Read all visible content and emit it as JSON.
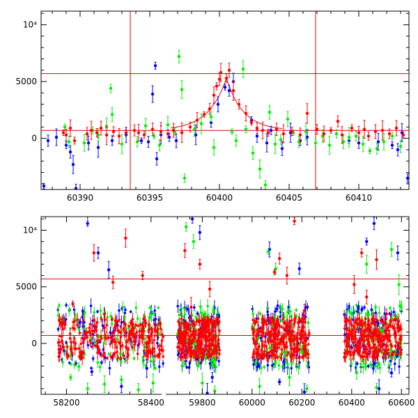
{
  "colors": {
    "red": "#ff0000",
    "green": "#00ee00",
    "blue": "#0000ff",
    "reference_line": "#dd0000",
    "frame": "#000000"
  },
  "chart_data": [
    {
      "type": "scatter",
      "panel": "top",
      "title": "",
      "xlabel": "",
      "ylabel": "",
      "xlim": [
        60387.2,
        60413.6
      ],
      "ylim": [
        -4500,
        11200
      ],
      "x_ticks": [
        60390,
        60395,
        60400,
        60405,
        60410
      ],
      "x_tick_labels": [
        "60390",
        "60395",
        "60400",
        "60405",
        "60410"
      ],
      "y_ticks": [
        0,
        5000,
        10000
      ],
      "y_tick_labels": [
        "0",
        "5000",
        "10⁴"
      ],
      "errorbars": true,
      "hlines": [
        700,
        5700
      ],
      "vlines": [
        60393.6,
        60406.9
      ],
      "model_curve": {
        "shape": "exponential cusp",
        "peak_x": 60400.5,
        "peak_y": 5300,
        "baseline": 700,
        "rise_scale_days": 1.3,
        "decay_scale_days": 1.2
      },
      "series": [
        {
          "color": "red",
          "points": [
            [
              60388.8,
              500
            ],
            [
              60389.0,
              300
            ],
            [
              60389.3,
              900
            ],
            [
              60389.6,
              -200
            ],
            [
              60390.5,
              400
            ],
            [
              60390.8,
              700
            ],
            [
              60391.2,
              500
            ],
            [
              60391.5,
              900
            ],
            [
              60391.9,
              300
            ],
            [
              60392.4,
              600
            ],
            [
              60392.8,
              200
            ],
            [
              60393.3,
              500
            ],
            [
              60393.9,
              700
            ],
            [
              60394.2,
              500
            ],
            [
              60394.6,
              300
            ],
            [
              60395.2,
              800
            ],
            [
              60395.8,
              600
            ],
            [
              60396.3,
              400
            ],
            [
              60396.7,
              700
            ],
            [
              60397.3,
              500
            ],
            [
              60397.9,
              1000
            ],
            [
              60398.4,
              1600
            ],
            [
              60398.9,
              2100
            ],
            [
              60399.3,
              2600
            ],
            [
              60399.6,
              3800
            ],
            [
              60399.8,
              4600
            ],
            [
              60400.0,
              5200
            ],
            [
              60400.1,
              5800
            ],
            [
              60400.5,
              5300
            ],
            [
              60400.7,
              6000
            ],
            [
              60401.0,
              4200
            ],
            [
              60401.4,
              3000
            ],
            [
              60401.9,
              2200
            ],
            [
              60402.3,
              1400
            ],
            [
              60402.7,
              900
            ],
            [
              60403.1,
              700
            ],
            [
              60403.5,
              500
            ],
            [
              60404.1,
              800
            ],
            [
              60404.6,
              400
            ],
            [
              60405.2,
              600
            ],
            [
              60405.8,
              300
            ],
            [
              60406.3,
              2200
            ],
            [
              60407.0,
              800
            ],
            [
              60407.5,
              400
            ],
            [
              60408.0,
              700
            ],
            [
              60408.5,
              1500
            ],
            [
              60408.8,
              300
            ],
            [
              60409.5,
              900
            ],
            [
              60410.0,
              500
            ],
            [
              60410.4,
              800
            ],
            [
              60410.7,
              200
            ],
            [
              60411.2,
              600
            ],
            [
              60411.7,
              700
            ],
            [
              60412.2,
              400
            ],
            [
              60412.7,
              900
            ],
            [
              60413.2,
              300
            ]
          ]
        },
        {
          "color": "green",
          "points": [
            [
              60388.9,
              1000
            ],
            [
              60389.2,
              -300
            ],
            [
              60390.3,
              -400
            ],
            [
              60390.9,
              700
            ],
            [
              60391.3,
              300
            ],
            [
              60391.9,
              1000
            ],
            [
              60392.2,
              4400
            ],
            [
              60392.3,
              2100
            ],
            [
              60393.0,
              -500
            ],
            [
              60394.1,
              -300
            ],
            [
              60394.7,
              1100
            ],
            [
              60395.3,
              200
            ],
            [
              60395.7,
              -600
            ],
            [
              60396.3,
              1200
            ],
            [
              60396.8,
              600
            ],
            [
              60397.1,
              7200
            ],
            [
              60397.3,
              4300
            ],
            [
              60397.5,
              -3500
            ],
            [
              60398.2,
              800
            ],
            [
              60398.7,
              1300
            ],
            [
              60399.4,
              1900
            ],
            [
              60399.6,
              -800
            ],
            [
              60400.9,
              600
            ],
            [
              60401.2,
              -200
            ],
            [
              60401.7,
              6100
            ],
            [
              60401.9,
              800
            ],
            [
              60402.4,
              -1300
            ],
            [
              60402.9,
              -2700
            ],
            [
              60403.3,
              -4100
            ],
            [
              60403.6,
              2300
            ],
            [
              60404.0,
              -500
            ],
            [
              60404.4,
              -100
            ],
            [
              60404.9,
              1700
            ],
            [
              60405.3,
              500
            ],
            [
              60405.7,
              -300
            ],
            [
              60406.2,
              600
            ],
            [
              60406.9,
              -400
            ],
            [
              60407.4,
              200
            ],
            [
              60407.9,
              -600
            ],
            [
              60408.4,
              400
            ],
            [
              60408.9,
              -300
            ],
            [
              60409.3,
              100
            ],
            [
              60409.8,
              200
            ],
            [
              60410.3,
              -500
            ],
            [
              60410.8,
              -1100
            ],
            [
              60411.3,
              -900
            ],
            [
              60411.8,
              -300
            ],
            [
              60412.4,
              200
            ],
            [
              60413.0,
              -700
            ]
          ]
        },
        {
          "color": "blue",
          "points": [
            [
              60387.4,
              -4200
            ],
            [
              60387.7,
              -200
            ],
            [
              60388.3,
              100
            ],
            [
              60389.0,
              -600
            ],
            [
              60389.3,
              -1200
            ],
            [
              60389.5,
              -2300
            ],
            [
              60389.7,
              -4400
            ],
            [
              60390.6,
              -400
            ],
            [
              60391.3,
              -800
            ],
            [
              60392.3,
              -200
            ],
            [
              60393.3,
              300
            ],
            [
              60394.4,
              -200
            ],
            [
              60394.9,
              -300
            ],
            [
              60395.2,
              3900
            ],
            [
              60395.4,
              6400
            ],
            [
              60395.5,
              -1800
            ],
            [
              60395.8,
              300
            ],
            [
              60396.4,
              100
            ],
            [
              60396.9,
              -200
            ],
            [
              60398.3,
              300
            ],
            [
              60399.4,
              1400
            ],
            [
              60399.9,
              3000
            ],
            [
              60400.4,
              4500
            ],
            [
              60400.7,
              4200
            ],
            [
              60401.0,
              5000
            ],
            [
              60402.3,
              1600
            ],
            [
              60402.7,
              200
            ],
            [
              60403.4,
              -400
            ],
            [
              60403.7,
              700
            ],
            [
              60404.5,
              -900
            ],
            [
              60405.1,
              500
            ],
            [
              60405.8,
              -200
            ],
            [
              60406.3,
              100
            ],
            [
              60409.3,
              -200
            ],
            [
              60410.0,
              -400
            ],
            [
              60411.4,
              -300
            ],
            [
              60412.4,
              -600
            ],
            [
              60412.8,
              -1000
            ],
            [
              60413.1,
              500
            ],
            [
              60413.5,
              -3500
            ]
          ]
        }
      ]
    },
    {
      "type": "scatter",
      "panel": "bottom",
      "title": "",
      "xlabel": "",
      "ylabel": "",
      "xlim": [
        58140,
        60630
      ],
      "ylim": [
        -4500,
        11200
      ],
      "x_ticks": [
        58200,
        58400,
        59800,
        60000,
        60200,
        60400,
        60600
      ],
      "x_tick_labels": [
        "58200",
        "58400",
        "59800",
        "60000",
        "60200",
        "60400",
        "60600"
      ],
      "y_ticks": [
        0,
        5000,
        10000
      ],
      "y_tick_labels": [
        "0",
        "5000",
        "10⁴"
      ],
      "errorbars": true,
      "hlines": [
        700,
        5700
      ],
      "axis_break": "x axis jumps from 58400 to 59800",
      "seasons": [
        [
          58180,
          58430
        ],
        [
          59700,
          59870
        ],
        [
          60000,
          60230
        ],
        [
          60370,
          60600
        ]
      ],
      "baseline_band": [
        -1500,
        2000
      ],
      "series": [
        {
          "color": "red",
          "points": [
            [
              58215,
              3500
            ],
            [
              58240,
              -800
            ],
            [
              58265,
              8000
            ],
            [
              58290,
              2600
            ],
            [
              58310,
              5400
            ],
            [
              58340,
              9300
            ],
            [
              58380,
              6000
            ],
            [
              59730,
              8200
            ],
            [
              59755,
              3200
            ],
            [
              59790,
              7000
            ],
            [
              59830,
              4800
            ],
            [
              60090,
              6300
            ],
            [
              60110,
              7500
            ],
            [
              60140,
              6000
            ],
            [
              60170,
              10800
            ],
            [
              60210,
              2900
            ],
            [
              60410,
              5200
            ],
            [
              60440,
              8000
            ],
            [
              60460,
              4100
            ],
            [
              60500,
              7400
            ],
            [
              60540,
              2600
            ]
          ]
        },
        {
          "color": "green",
          "points": [
            [
              58210,
              -3000
            ],
            [
              58250,
              -4000
            ],
            [
              58290,
              -3600
            ],
            [
              58330,
              -3200
            ],
            [
              58370,
              -4100
            ],
            [
              58405,
              -3500
            ],
            [
              59735,
              10300
            ],
            [
              59765,
              9000
            ],
            [
              59800,
              -3500
            ],
            [
              59850,
              -4200
            ],
            [
              60030,
              -3800
            ],
            [
              60065,
              8100
            ],
            [
              60095,
              6600
            ],
            [
              60150,
              -3000
            ],
            [
              60220,
              -4000
            ],
            [
              60420,
              -2600
            ],
            [
              60460,
              7000
            ],
            [
              60500,
              -3900
            ],
            [
              60560,
              8300
            ],
            [
              60590,
              5200
            ]
          ]
        },
        {
          "color": "blue",
          "points": [
            [
              58250,
              10600
            ],
            [
              58275,
              8000
            ],
            [
              58300,
              6500
            ],
            [
              58260,
              -2500
            ],
            [
              58330,
              -3800
            ],
            [
              58390,
              -2200
            ],
            [
              59760,
              11000
            ],
            [
              59790,
              9800
            ],
            [
              59820,
              -4400
            ],
            [
              59840,
              -3000
            ],
            [
              60070,
              8300
            ],
            [
              60110,
              -3400
            ],
            [
              60190,
              6600
            ],
            [
              60210,
              -4300
            ],
            [
              60460,
              9000
            ],
            [
              60490,
              10600
            ],
            [
              60510,
              -4000
            ],
            [
              60560,
              -2600
            ],
            [
              60585,
              8000
            ]
          ]
        }
      ]
    }
  ]
}
